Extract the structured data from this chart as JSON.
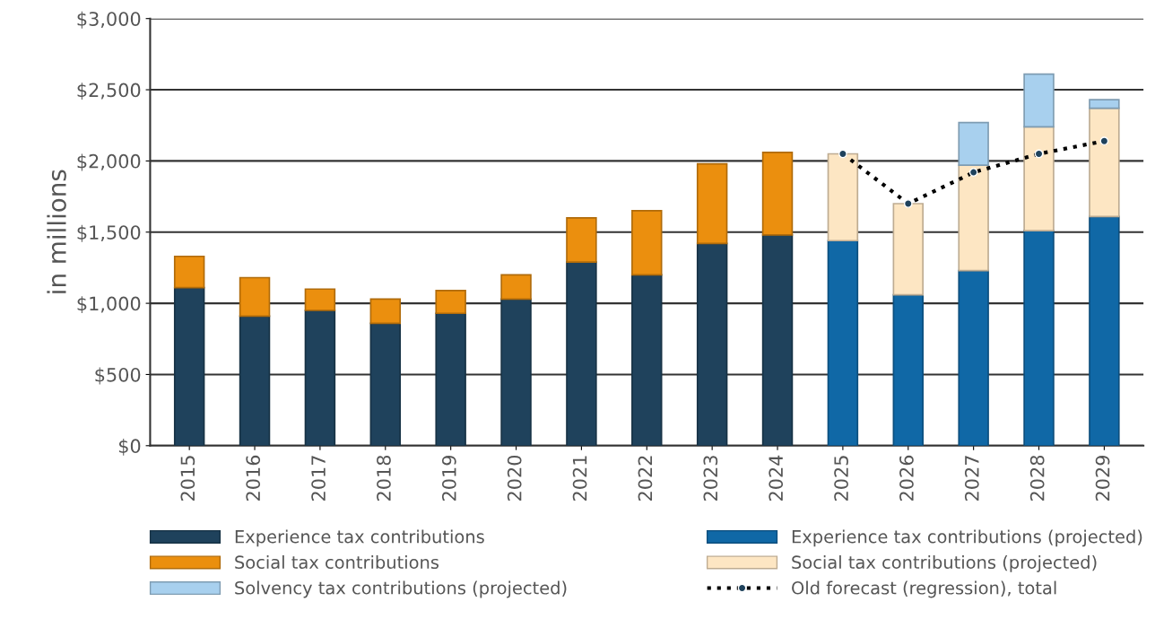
{
  "chart_data": {
    "type": "bar",
    "stacked": true,
    "ylabel": "in millions",
    "categories": [
      "2015",
      "2016",
      "2017",
      "2018",
      "2019",
      "2020",
      "2021",
      "2022",
      "2023",
      "2024",
      "2025",
      "2026",
      "2027",
      "2028",
      "2029"
    ],
    "ylim": [
      0,
      3000
    ],
    "yticks": [
      {
        "value": 0,
        "label": "$0"
      },
      {
        "value": 500,
        "label": "$500"
      },
      {
        "value": 1000,
        "label": "$1,000"
      },
      {
        "value": 1500,
        "label": "$1,500"
      },
      {
        "value": 2000,
        "label": "$2,000"
      },
      {
        "value": 2500,
        "label": "$2,500"
      },
      {
        "value": 3000,
        "label": "$3,000"
      }
    ],
    "grid": "y",
    "legend": "bottom",
    "series": [
      {
        "name": "Experience tax contributions",
        "color": "#1f425c",
        "values": [
          1110,
          910,
          950,
          860,
          930,
          1030,
          1290,
          1200,
          1420,
          1480,
          null,
          null,
          null,
          null,
          null
        ]
      },
      {
        "name": "Experience tax contributions (projected)",
        "color": "#1068a6",
        "values": [
          null,
          null,
          null,
          null,
          null,
          null,
          null,
          null,
          null,
          null,
          1440,
          1060,
          1230,
          1510,
          1610
        ]
      },
      {
        "name": "Social tax contributions",
        "color": "#eb8f0e",
        "values": [
          220,
          270,
          150,
          170,
          160,
          170,
          310,
          450,
          560,
          580,
          null,
          null,
          null,
          null,
          null
        ]
      },
      {
        "name": "Social tax contributions (projected)",
        "color": "#fde6c3",
        "values": [
          null,
          null,
          null,
          null,
          null,
          null,
          null,
          null,
          null,
          null,
          610,
          640,
          740,
          730,
          760
        ]
      },
      {
        "name": "Solvency tax contributions (projected)",
        "color": "#a8d0ee",
        "values": [
          null,
          null,
          null,
          null,
          null,
          null,
          null,
          null,
          null,
          null,
          null,
          null,
          300,
          370,
          60
        ]
      },
      {
        "name": "Old forecast (regression), total",
        "type": "line",
        "color": "#000000",
        "line_style": "dotted",
        "marker": "circle",
        "values": [
          null,
          null,
          null,
          null,
          null,
          null,
          null,
          null,
          null,
          null,
          2050,
          1700,
          1920,
          2050,
          2140
        ]
      }
    ]
  }
}
